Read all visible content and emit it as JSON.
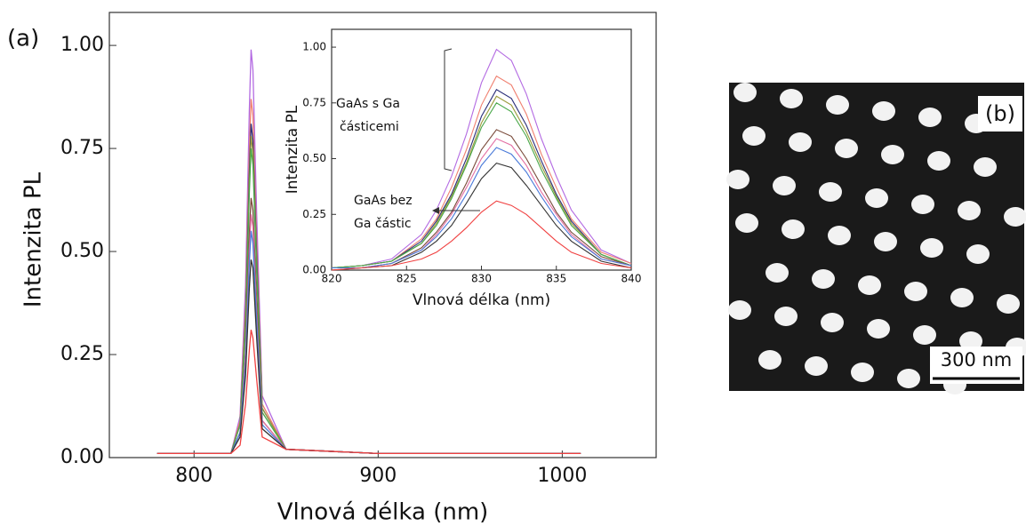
{
  "figure": {
    "panel_a_label": "(a)",
    "panel_b_label": "(b)",
    "scale_bar_label": "300 nm"
  },
  "chart_data": [
    {
      "type": "line",
      "x_label": "Vlnová délka (nm)",
      "y_label": "Intenzita PL",
      "x": [
        780,
        800,
        820,
        825,
        828,
        830,
        831,
        832,
        834,
        837,
        850,
        900,
        950,
        1010
      ],
      "xlim": [
        754,
        1051
      ],
      "ylim": [
        0,
        1.08
      ],
      "xticks": [
        800,
        900,
        1000
      ],
      "yticks": [
        {
          "value": 0,
          "label": "0.00"
        },
        {
          "value": 0.25,
          "label": "0.25"
        },
        {
          "value": 0.5,
          "label": "0.50"
        },
        {
          "value": 0.75,
          "label": "0.75"
        },
        {
          "value": 1,
          "label": "1.00"
        }
      ],
      "series": [
        {
          "color": "#b36ae2",
          "values": [
            0.01,
            0.01,
            0.01,
            0.1,
            0.42,
            0.84,
            0.99,
            0.94,
            0.59,
            0.15,
            0.02,
            0.01,
            0.01,
            0.01
          ]
        },
        {
          "color": "#f08070",
          "values": [
            0.01,
            0.01,
            0.01,
            0.09,
            0.37,
            0.74,
            0.87,
            0.83,
            0.52,
            0.13,
            0.02,
            0.01,
            0.01,
            0.01
          ]
        },
        {
          "color": "#2a2f7a",
          "values": [
            0.01,
            0.01,
            0.01,
            0.08,
            0.34,
            0.69,
            0.81,
            0.77,
            0.49,
            0.12,
            0.02,
            0.01,
            0.01,
            0.01
          ]
        },
        {
          "color": "#9a9a3a",
          "values": [
            0.01,
            0.01,
            0.01,
            0.08,
            0.33,
            0.66,
            0.78,
            0.74,
            0.47,
            0.12,
            0.02,
            0.01,
            0.01,
            0.01
          ]
        },
        {
          "color": "#4aa84a",
          "values": [
            0.01,
            0.01,
            0.01,
            0.08,
            0.32,
            0.64,
            0.75,
            0.71,
            0.45,
            0.11,
            0.02,
            0.01,
            0.01,
            0.01
          ]
        },
        {
          "color": "#7a4a3a",
          "values": [
            0.01,
            0.01,
            0.01,
            0.06,
            0.26,
            0.54,
            0.63,
            0.6,
            0.38,
            0.09,
            0.02,
            0.01,
            0.01,
            0.01
          ]
        },
        {
          "color": "#e36fa3",
          "values": [
            0.01,
            0.01,
            0.01,
            0.06,
            0.25,
            0.5,
            0.59,
            0.56,
            0.35,
            0.09,
            0.02,
            0.01,
            0.01,
            0.01
          ]
        },
        {
          "color": "#4a7ad9",
          "values": [
            0.01,
            0.01,
            0.01,
            0.06,
            0.23,
            0.47,
            0.55,
            0.52,
            0.33,
            0.08,
            0.02,
            0.01,
            0.01,
            0.01
          ]
        },
        {
          "color": "#333333",
          "values": [
            0.01,
            0.01,
            0.01,
            0.05,
            0.2,
            0.41,
            0.48,
            0.46,
            0.29,
            0.07,
            0.02,
            0.01,
            0.01,
            0.01
          ]
        },
        {
          "color": "#f04040",
          "values": [
            0.01,
            0.01,
            0.01,
            0.03,
            0.13,
            0.26,
            0.31,
            0.29,
            0.19,
            0.05,
            0.02,
            0.01,
            0.01,
            0.01
          ]
        }
      ]
    },
    {
      "type": "line",
      "x_label": "Vlnová délka (nm)",
      "y_label": "Intenzita PL",
      "annotations": [
        {
          "lines": [
            "GaAs s Ga",
            "částicemi"
          ]
        },
        {
          "lines": [
            "GaAs bez",
            "Ga částic"
          ]
        }
      ],
      "x": [
        820,
        822,
        824,
        826,
        827,
        828,
        829,
        830,
        831,
        832,
        833,
        834,
        835,
        836,
        838,
        840
      ],
      "xlim": [
        820,
        840
      ],
      "ylim": [
        0,
        1.08
      ],
      "xticks": [
        820,
        825,
        830,
        835,
        840
      ],
      "yticks": [
        {
          "value": 0,
          "label": "0.00"
        },
        {
          "value": 0.25,
          "label": "0.25"
        },
        {
          "value": 0.5,
          "label": "0.50"
        },
        {
          "value": 0.75,
          "label": "0.75"
        },
        {
          "value": 1,
          "label": "1.00"
        }
      ],
      "series": [
        {
          "color": "#b36ae2",
          "values": [
            0.01,
            0.02,
            0.05,
            0.16,
            0.27,
            0.42,
            0.61,
            0.84,
            0.99,
            0.94,
            0.79,
            0.59,
            0.42,
            0.27,
            0.09,
            0.03
          ]
        },
        {
          "color": "#f08070",
          "values": [
            0.01,
            0.02,
            0.04,
            0.14,
            0.23,
            0.37,
            0.54,
            0.74,
            0.87,
            0.83,
            0.7,
            0.52,
            0.37,
            0.23,
            0.08,
            0.03
          ]
        },
        {
          "color": "#2a2f7a",
          "values": [
            0.01,
            0.02,
            0.04,
            0.13,
            0.22,
            0.34,
            0.5,
            0.69,
            0.81,
            0.77,
            0.65,
            0.49,
            0.34,
            0.22,
            0.07,
            0.02
          ]
        },
        {
          "color": "#9a9a3a",
          "values": [
            0.01,
            0.02,
            0.04,
            0.12,
            0.21,
            0.33,
            0.48,
            0.66,
            0.78,
            0.74,
            0.62,
            0.47,
            0.33,
            0.21,
            0.07,
            0.02
          ]
        },
        {
          "color": "#4aa84a",
          "values": [
            0.01,
            0.02,
            0.04,
            0.12,
            0.2,
            0.32,
            0.47,
            0.64,
            0.75,
            0.71,
            0.6,
            0.45,
            0.32,
            0.2,
            0.07,
            0.02
          ]
        },
        {
          "color": "#7a4a3a",
          "values": [
            0.01,
            0.01,
            0.03,
            0.1,
            0.17,
            0.26,
            0.39,
            0.54,
            0.63,
            0.6,
            0.5,
            0.38,
            0.26,
            0.17,
            0.06,
            0.02
          ]
        },
        {
          "color": "#e36fa3",
          "values": [
            0.01,
            0.01,
            0.03,
            0.09,
            0.16,
            0.25,
            0.37,
            0.5,
            0.59,
            0.56,
            0.47,
            0.35,
            0.25,
            0.16,
            0.05,
            0.02
          ]
        },
        {
          "color": "#4a7ad9",
          "values": [
            0.01,
            0.01,
            0.03,
            0.09,
            0.15,
            0.23,
            0.34,
            0.47,
            0.55,
            0.52,
            0.44,
            0.33,
            0.23,
            0.15,
            0.05,
            0.02
          ]
        },
        {
          "color": "#333333",
          "values": [
            0.0,
            0.01,
            0.02,
            0.08,
            0.13,
            0.2,
            0.3,
            0.41,
            0.48,
            0.46,
            0.38,
            0.29,
            0.2,
            0.13,
            0.04,
            0.01
          ]
        },
        {
          "color": "#f04040",
          "values": [
            0.0,
            0.01,
            0.02,
            0.05,
            0.08,
            0.13,
            0.19,
            0.26,
            0.31,
            0.29,
            0.25,
            0.19,
            0.13,
            0.08,
            0.03,
            0.01
          ]
        }
      ]
    }
  ]
}
